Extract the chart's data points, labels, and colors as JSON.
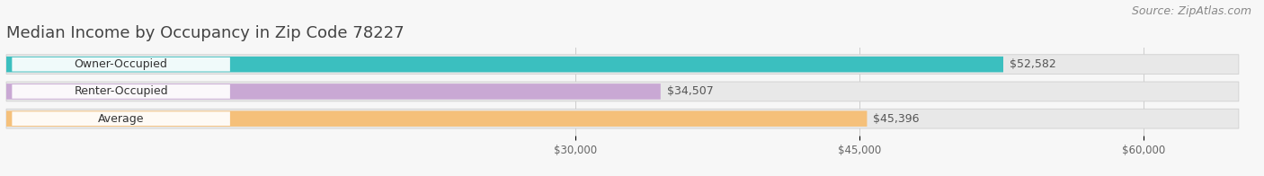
{
  "title": "Median Income by Occupancy in Zip Code 78227",
  "source": "Source: ZipAtlas.com",
  "categories": [
    "Owner-Occupied",
    "Renter-Occupied",
    "Average"
  ],
  "values": [
    52582,
    34507,
    45396
  ],
  "bar_colors": [
    "#3bbfbf",
    "#c9a8d4",
    "#f5c07a"
  ],
  "labels": [
    "$52,582",
    "$34,507",
    "$45,396"
  ],
  "xmin": 0,
  "xmax": 65000,
  "xticks": [
    30000,
    45000,
    60000
  ],
  "xticklabels": [
    "$30,000",
    "$45,000",
    "$60,000"
  ],
  "background_color": "#f7f7f7",
  "bar_bg_color": "#e8e8e8",
  "title_fontsize": 13,
  "source_fontsize": 9,
  "label_fontsize": 9,
  "cat_fontsize": 9,
  "bar_height": 0.58,
  "figsize": [
    14.06,
    1.96
  ],
  "dpi": 100
}
